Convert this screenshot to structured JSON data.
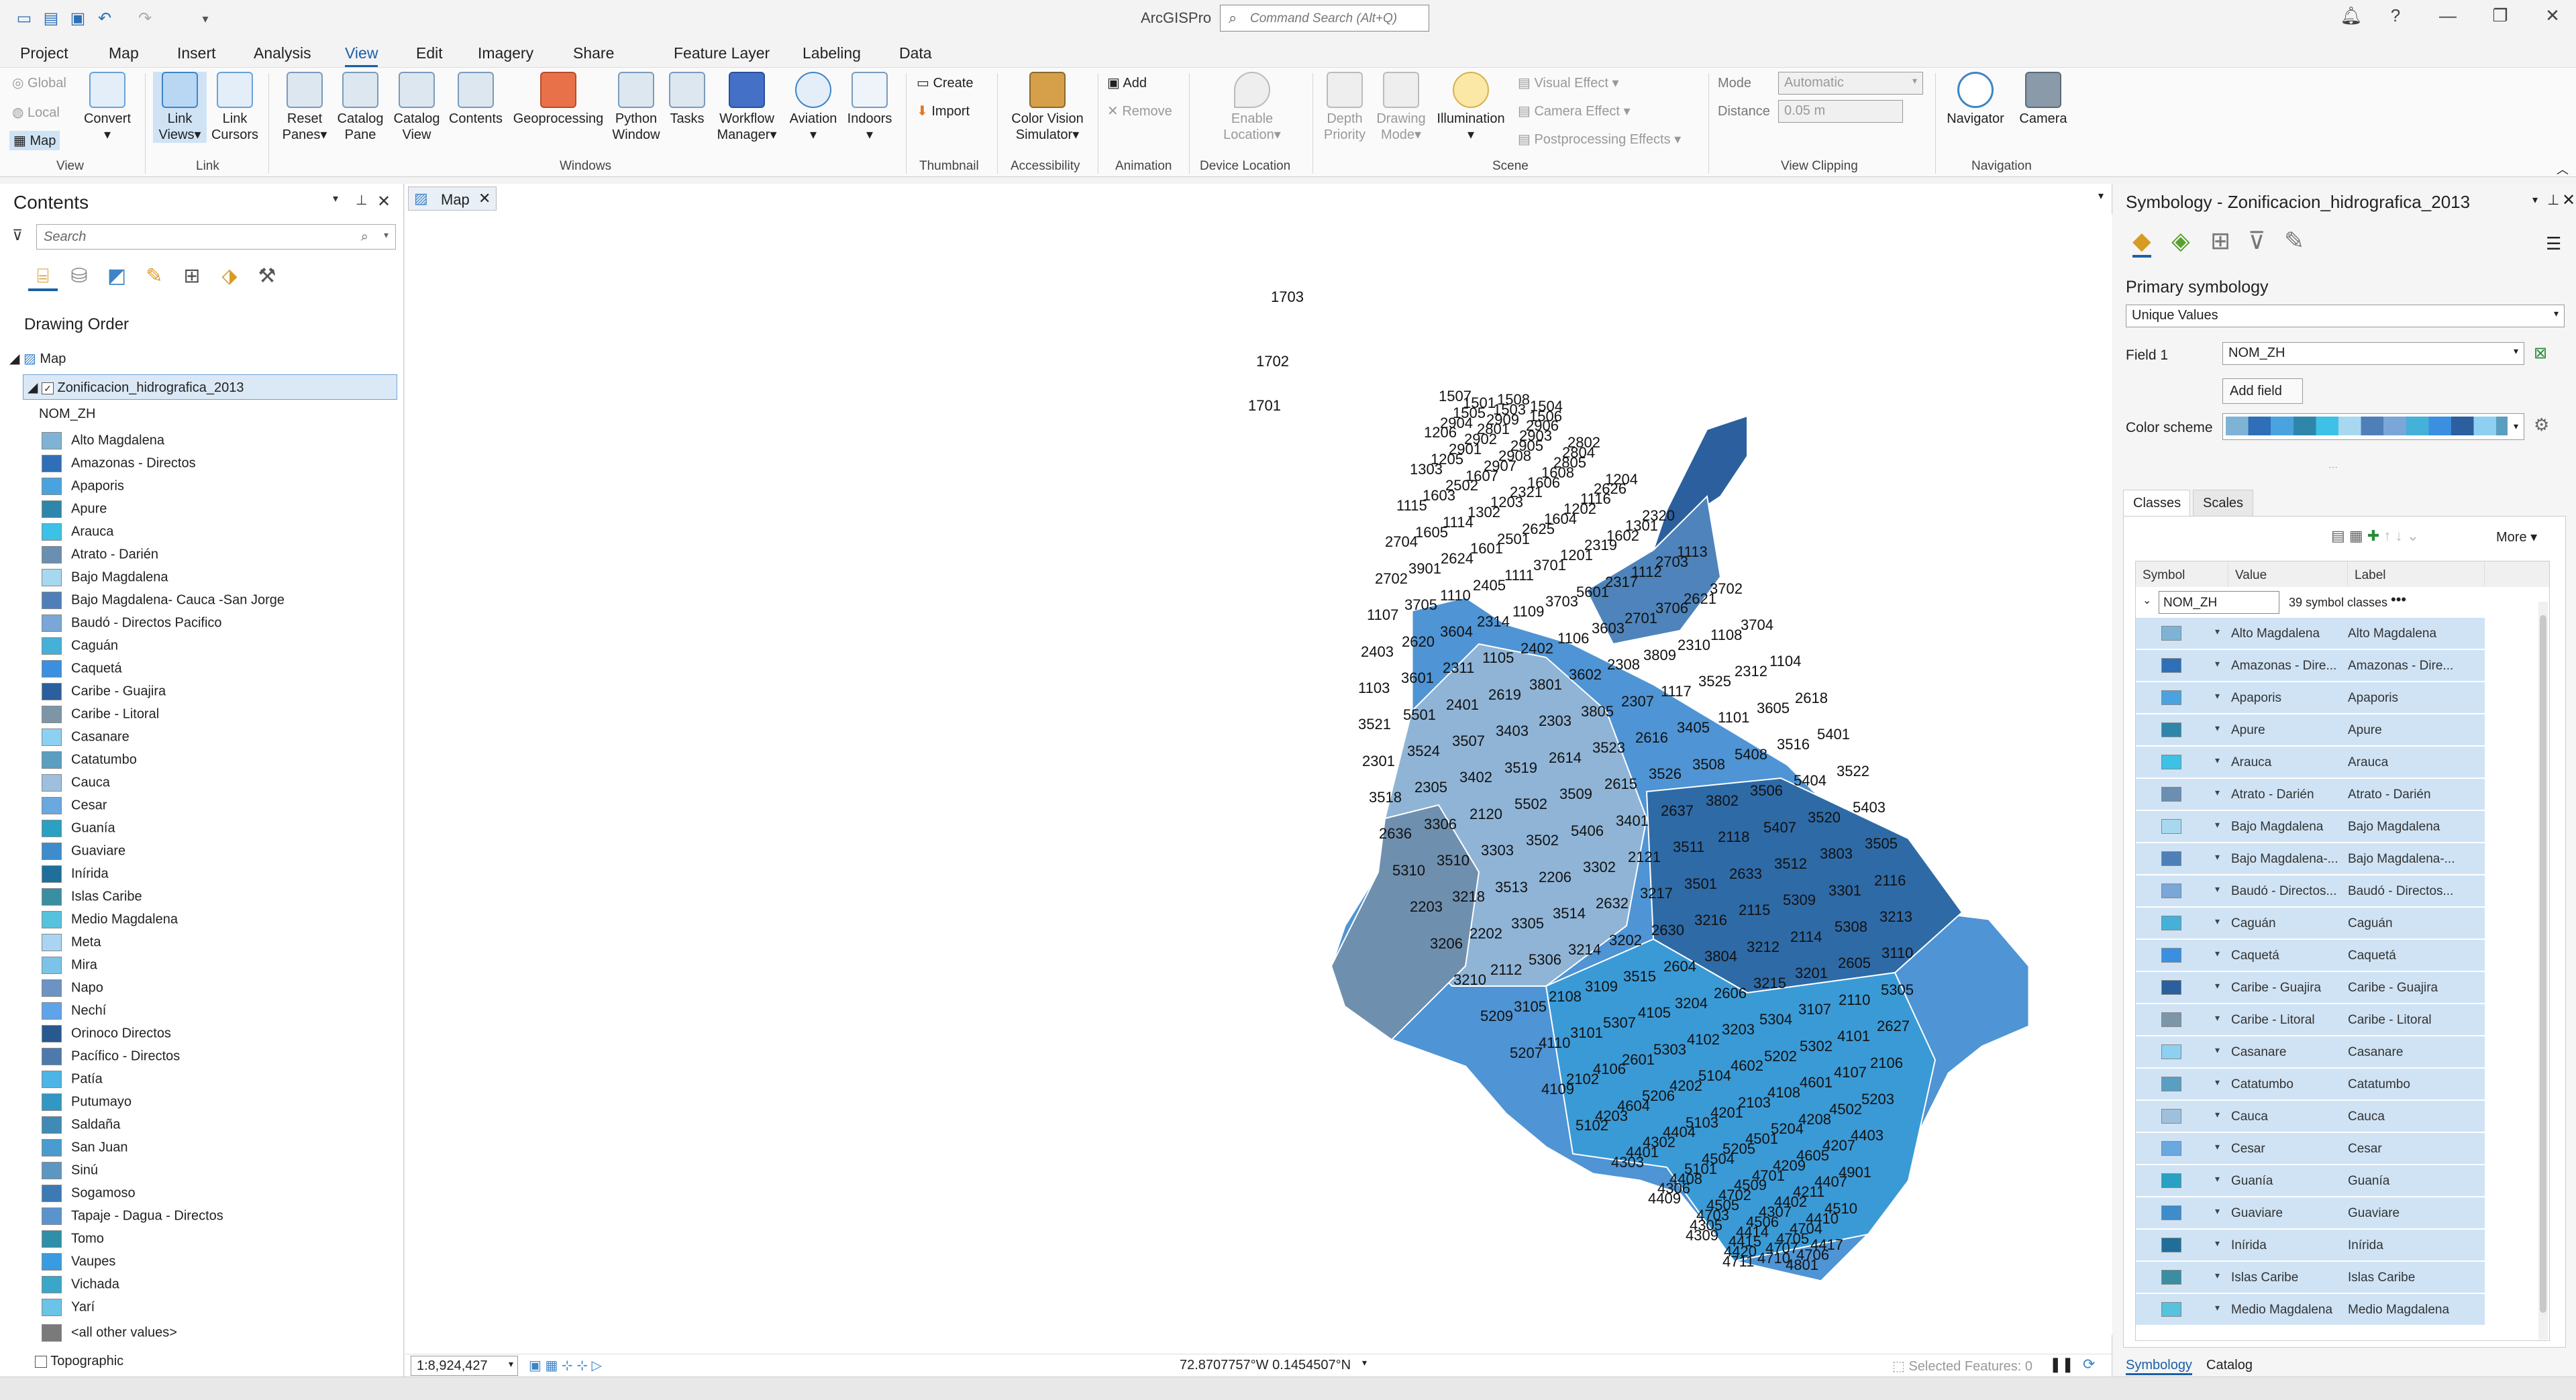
{
  "app": {
    "title": "ArcGISPro",
    "command_search_placeholder": "Command Search (Alt+Q)"
  },
  "tabs": [
    "Project",
    "Map",
    "Insert",
    "Analysis",
    "View",
    "Edit",
    "Imagery",
    "Share",
    "Feature Layer",
    "Labeling",
    "Data"
  ],
  "active_tab": "View",
  "ribbon": {
    "view_small": [
      "Global",
      "Local",
      "Map"
    ],
    "convert": "Convert",
    "link": [
      [
        "Link",
        "Views"
      ],
      [
        "Link",
        "Cursors"
      ]
    ],
    "windows": [
      [
        "Reset",
        "Panes"
      ],
      [
        "Catalog",
        "Pane"
      ],
      [
        "Catalog",
        "View"
      ],
      [
        "Contents",
        ""
      ],
      [
        "Geoprocessing",
        ""
      ],
      [
        "Python",
        "Window"
      ],
      [
        "Tasks",
        ""
      ],
      [
        "Workflow",
        "Manager"
      ],
      [
        "Aviation",
        ""
      ],
      [
        "Indoors",
        ""
      ]
    ],
    "thumbnail": [
      "Create",
      "Import"
    ],
    "accessibility": [
      "Color Vision",
      "Simulator"
    ],
    "animation": [
      "Add",
      "Remove"
    ],
    "device_location": [
      "Enable",
      "Location"
    ],
    "scene": [
      [
        "Depth",
        "Priority"
      ],
      [
        "Drawing",
        "Mode"
      ],
      [
        "Illumination",
        ""
      ]
    ],
    "scene_small": [
      "Visual Effect",
      "Camera Effect",
      "Postprocessing Effects"
    ],
    "clipping": {
      "mode_label": "Mode",
      "mode_value": "Automatic",
      "distance_label": "Distance",
      "distance_value": "0.05  m"
    },
    "navigation": [
      "Navigator",
      "Camera"
    ],
    "groups": [
      "View",
      "Link",
      "Windows",
      "Thumbnail",
      "Accessibility",
      "Animation",
      "Device Location",
      "Scene",
      "View Clipping",
      "Navigation"
    ]
  },
  "contents": {
    "title": "Contents",
    "search_placeholder": "Search",
    "drawing_order": "Drawing Order",
    "map_name": "Map",
    "layer_name": "Zonificacion_hidrografica_2013",
    "field": "NOM_ZH",
    "legend": [
      {
        "label": "Alto Magdalena",
        "color": "#7fb3d5"
      },
      {
        "label": "Amazonas - Directos",
        "color": "#2f6fb7"
      },
      {
        "label": "Apaporis",
        "color": "#4aa3df"
      },
      {
        "label": "Apure",
        "color": "#2e86ab"
      },
      {
        "label": "Arauca",
        "color": "#3ec1e6"
      },
      {
        "label": "Atrato - Darién",
        "color": "#6b8fb0"
      },
      {
        "label": "Bajo Magdalena",
        "color": "#a8d8f0"
      },
      {
        "label": "Bajo Magdalena- Cauca -San Jorge",
        "color": "#4f7fb8"
      },
      {
        "label": "Baudó - Directos Pacifico",
        "color": "#7aa6d8"
      },
      {
        "label": "Caguán",
        "color": "#45b0d8"
      },
      {
        "label": "Caquetá",
        "color": "#3b8fe0"
      },
      {
        "label": "Caribe - Guajira",
        "color": "#2b5f9e"
      },
      {
        "label": "Caribe - Litoral",
        "color": "#7c96a8"
      },
      {
        "label": "Casanare",
        "color": "#8ed0f2"
      },
      {
        "label": "Catatumbo",
        "color": "#5a9ec2"
      },
      {
        "label": "Cauca",
        "color": "#9fc0dc"
      },
      {
        "label": "Cesar",
        "color": "#6aa8e0"
      },
      {
        "label": "Guanía",
        "color": "#2aa0c2"
      },
      {
        "label": "Guaviare",
        "color": "#3d8ccc"
      },
      {
        "label": "Inírida",
        "color": "#1f6f9a"
      },
      {
        "label": "Islas Caribe",
        "color": "#3a8ea2"
      },
      {
        "label": "Medio Magdalena",
        "color": "#57c2dd"
      },
      {
        "label": "Meta",
        "color": "#a9d5f2"
      },
      {
        "label": "Mira",
        "color": "#7bc3e8"
      },
      {
        "label": "Napo",
        "color": "#6c93c4"
      },
      {
        "label": "Nechí",
        "color": "#5fa4e8"
      },
      {
        "label": "Orinoco Directos",
        "color": "#27598f"
      },
      {
        "label": "Pacífico - Directos",
        "color": "#4d79ad"
      },
      {
        "label": "Patía",
        "color": "#4cb5e6"
      },
      {
        "label": "Putumayo",
        "color": "#3197c4"
      },
      {
        "label": "Saldaña",
        "color": "#3f8bb5"
      },
      {
        "label": "San Juan",
        "color": "#4a9bd0"
      },
      {
        "label": "Sinú",
        "color": "#5e96c2"
      },
      {
        "label": "Sogamoso",
        "color": "#3d7ab3"
      },
      {
        "label": "Tapaje - Dagua - Directos",
        "color": "#5b93cf"
      },
      {
        "label": "Tomo",
        "color": "#2f8fa8"
      },
      {
        "label": "Vaupes",
        "color": "#3a9be0"
      },
      {
        "label": "Vichada",
        "color": "#3aa6c8"
      },
      {
        "label": "Yarí",
        "color": "#6cc3e8"
      }
    ],
    "other_values": "<all other values>",
    "other_color": "#7a7a7a",
    "basemap": "Topographic"
  },
  "map": {
    "tab": "Map",
    "scale": "1:8,924,427",
    "coordinates": "72.8707757°W 0.1454507°N",
    "selected_features": "Selected Features: 0",
    "labels": [
      "1703",
      "1702",
      "1701",
      "1507",
      "1508",
      "1501",
      "1504",
      "1503",
      "1505",
      "1506",
      "2909",
      "2904",
      "2906",
      "2801",
      "1206",
      "2903",
      "2902",
      "2802",
      "2905",
      "2901",
      "2804",
      "2908",
      "1205",
      "2805",
      "2907",
      "1303",
      "1608",
      "1607",
      "1204",
      "1606",
      "2502",
      "2626",
      "2321",
      "1603",
      "1116",
      "1203",
      "1115",
      "1202",
      "1302",
      "2320",
      "1604",
      "1114",
      "1301",
      "2625",
      "1605",
      "1602",
      "2501",
      "2704",
      "2319",
      "1601",
      "1113",
      "1201",
      "2624",
      "2703",
      "3701",
      "3901",
      "1112",
      "1111",
      "2702",
      "2317",
      "2405",
      "3702",
      "5601",
      "1110",
      "2621",
      "3703",
      "3705",
      "3706",
      "1109",
      "1107",
      "2701",
      "2314",
      "3704",
      "3603",
      "3604",
      "1108",
      "1106",
      "2620",
      "2310",
      "2402",
      "2403",
      "3809",
      "1105",
      "1104",
      "2308",
      "2311",
      "2312",
      "3602",
      "3601",
      "3525",
      "3801",
      "1103",
      "1117",
      "2619",
      "2618",
      "2307",
      "2401",
      "3605",
      "3805",
      "5501",
      "1101",
      "2303",
      "3521",
      "3405",
      "3403",
      "5401",
      "2616",
      "3507",
      "3516",
      "3523",
      "3524",
      "5408",
      "2614",
      "2301",
      "3508",
      "3519",
      "3522",
      "3526",
      "3402",
      "5404",
      "2615",
      "2305",
      "3506",
      "3509",
      "3518",
      "3802",
      "5502",
      "5403",
      "2637",
      "2120",
      "3520",
      "3401",
      "3306",
      "5407",
      "5406",
      "2636",
      "2118",
      "3502",
      "3505",
      "3511",
      "3303",
      "3803",
      "2121",
      "3510",
      "3512",
      "3302",
      "5310",
      "2633",
      "2206",
      "2116",
      "3501",
      "3513",
      "3301",
      "3217",
      "3218",
      "5309",
      "2632",
      "2203",
      "2115",
      "3514",
      "3213",
      "3216",
      "3305",
      "5308",
      "2630",
      "2202",
      "2114",
      "3202",
      "3206",
      "3212",
      "3214",
      "3110",
      "3804",
      "5306",
      "2605",
      "2604",
      "2112",
      "3201",
      "3515",
      "3210",
      "3215",
      "3109",
      "5305",
      "2606",
      "2108",
      "2110",
      "3204",
      "3105",
      "3107",
      "4105",
      "5209",
      "5304",
      "5307",
      "2627",
      "3203",
      "3101",
      "4101",
      "4102",
      "4110",
      "5302",
      "5303",
      "5207",
      "5202",
      "2601",
      "2106",
      "4602",
      "4106",
      "4107",
      "5104",
      "2102",
      "4601",
      "4202",
      "4109",
      "4108",
      "5206",
      "5203",
      "2103",
      "4604",
      "4502",
      "4201",
      "4203",
      "4208",
      "5103",
      "5102",
      "5204",
      "4404",
      "4403",
      "4501",
      "4302",
      "4207",
      "5205",
      "4401",
      "4605",
      "4504",
      "4303",
      "4209",
      "5101",
      "4901",
      "4701",
      "4408",
      "4407",
      "4509",
      "4306",
      "4211",
      "4702",
      "4409",
      "4402",
      "4505",
      "4510",
      "4307",
      "4703",
      "4410",
      "4506",
      "4305",
      "4704",
      "4414",
      "4309",
      "4705",
      "4415",
      "4417",
      "4707",
      "4420",
      "4706",
      "4710",
      "4711",
      "4801"
    ]
  },
  "symbology": {
    "title": "Symbology - Zonificacion_hidrografica_2013",
    "primary": "Primary symbology",
    "method": "Unique Values",
    "field_label": "Field 1",
    "field_value": "NOM_ZH",
    "add_field": "Add field",
    "color_scheme_label": "Color scheme",
    "tabs": [
      "Classes",
      "Scales"
    ],
    "more": "More",
    "headers": [
      "Symbol",
      "Value",
      "Label"
    ],
    "group_field": "NOM_ZH",
    "class_count": "39 symbol classes",
    "rows": [
      {
        "value": "Alto Magdalena",
        "label": "Alto Magdalena"
      },
      {
        "value": "Amazonas - Dire...",
        "label": "Amazonas - Dire..."
      },
      {
        "value": "Apaporis",
        "label": "Apaporis"
      },
      {
        "value": "Apure",
        "label": "Apure"
      },
      {
        "value": "Arauca",
        "label": "Arauca"
      },
      {
        "value": "Atrato - Darién",
        "label": "Atrato - Darién"
      },
      {
        "value": "Bajo Magdalena",
        "label": "Bajo Magdalena"
      },
      {
        "value": "Bajo Magdalena-...",
        "label": "Bajo Magdalena-..."
      },
      {
        "value": "Baudó - Directos...",
        "label": "Baudó - Directos..."
      },
      {
        "value": "Caguán",
        "label": "Caguán"
      },
      {
        "value": "Caquetá",
        "label": "Caquetá"
      },
      {
        "value": "Caribe - Guajira",
        "label": "Caribe - Guajira"
      },
      {
        "value": "Caribe - Litoral",
        "label": "Caribe - Litoral"
      },
      {
        "value": "Casanare",
        "label": "Casanare"
      },
      {
        "value": "Catatumbo",
        "label": "Catatumbo"
      },
      {
        "value": "Cauca",
        "label": "Cauca"
      },
      {
        "value": "Cesar",
        "label": "Cesar"
      },
      {
        "value": "Guanía",
        "label": "Guanía"
      },
      {
        "value": "Guaviare",
        "label": "Guaviare"
      },
      {
        "value": "Inírida",
        "label": "Inírida"
      },
      {
        "value": "Islas Caribe",
        "label": "Islas Caribe"
      },
      {
        "value": "Medio Magdalena",
        "label": "Medio Magdalena"
      }
    ],
    "bottom_tabs": [
      "Symbology",
      "Catalog"
    ]
  }
}
